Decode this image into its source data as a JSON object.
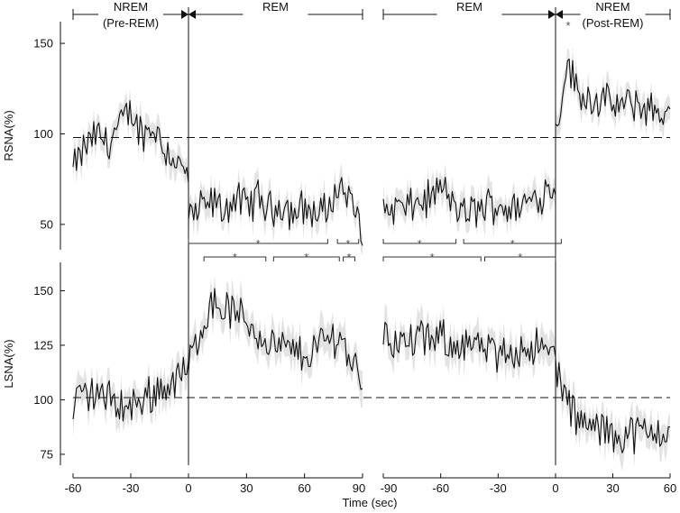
{
  "chart_data": {
    "type": "line",
    "x_label": "Time (sec)",
    "x_tick_labels": [
      "-60",
      "-30",
      "0",
      "30",
      "60",
      "90",
      "-90",
      "-60",
      "-30",
      "0",
      "30",
      "60"
    ],
    "phases": [
      {
        "label": "NREM",
        "sub": "(Pre-REM)"
      },
      {
        "label": "REM",
        "sub": ""
      },
      {
        "label": "REM",
        "sub": ""
      },
      {
        "label": "NREM",
        "sub": "(Post-REM)"
      }
    ],
    "significance_marker": "*",
    "panels": [
      {
        "id": "rsna",
        "ylabel": "RSNA(%)",
        "ylim": [
          36,
          162
        ],
        "yticks": [
          50,
          100,
          150
        ],
        "baseline": 98,
        "segments": {
          "pre_nrem": {
            "x": [
              -60,
              -54,
              -48,
              -42,
              -36,
              -30,
              -24,
              -18,
              -12,
              -6,
              0
            ],
            "y": [
              80,
              92,
              100,
              95,
              104,
              112,
              100,
              104,
              92,
              84,
              76
            ]
          },
          "rem_onset": {
            "x": [
              0,
              6,
              12,
              18,
              24,
              30,
              36,
              42,
              48,
              54,
              60,
              66,
              72,
              78,
              84,
              90
            ],
            "y": [
              52,
              58,
              62,
              58,
              64,
              60,
              65,
              58,
              62,
              56,
              60,
              55,
              58,
              72,
              62,
              48
            ]
          },
          "rem_offset": {
            "x": [
              -90,
              -84,
              -78,
              -72,
              -66,
              -60,
              -54,
              -48,
              -42,
              -36,
              -30,
              -24,
              -18,
              -12,
              -6,
              0
            ],
            "y": [
              55,
              60,
              58,
              62,
              64,
              70,
              62,
              55,
              58,
              60,
              62,
              58,
              60,
              64,
              68,
              72
            ]
          },
          "post_nrem": {
            "x": [
              0,
              6,
              12,
              18,
              24,
              30,
              36,
              42,
              48,
              54,
              60
            ],
            "y": [
              100,
              140,
              122,
              120,
              118,
              116,
              115,
              117,
              114,
              112,
              110
            ]
          }
        },
        "significance_brackets": [
          {
            "side": "onset",
            "from": 0,
            "to": 72
          },
          {
            "side": "onset",
            "from": 77,
            "to": 88
          },
          {
            "side": "offset",
            "from": -90,
            "to": -52
          },
          {
            "side": "offset",
            "from": -48,
            "to": 3
          }
        ]
      },
      {
        "id": "lsna",
        "ylabel": "LSNA(%)",
        "ylim": [
          70,
          163
        ],
        "yticks": [
          75,
          100,
          125,
          150
        ],
        "baseline": 101,
        "segments": {
          "pre_nrem": {
            "x": [
              -60,
              -54,
              -48,
              -42,
              -36,
              -30,
              -24,
              -18,
              -12,
              -6,
              0
            ],
            "y": [
              98,
              102,
              104,
              100,
              98,
              96,
              100,
              104,
              106,
              110,
              114
            ]
          },
          "rem_onset": {
            "x": [
              0,
              6,
              12,
              18,
              24,
              30,
              36,
              42,
              48,
              54,
              60,
              66,
              72,
              78,
              84,
              90
            ],
            "y": [
              115,
              132,
              145,
              142,
              140,
              136,
              130,
              126,
              124,
              122,
              120,
              124,
              128,
              130,
              118,
              110
            ]
          },
          "rem_offset": {
            "x": [
              -90,
              -84,
              -78,
              -72,
              -66,
              -60,
              -54,
              -48,
              -42,
              -36,
              -30,
              -24,
              -18,
              -12,
              -6,
              0
            ],
            "y": [
              130,
              128,
              124,
              130,
              126,
              128,
              125,
              127,
              124,
              122,
              120,
              122,
              124,
              125,
              122,
              120
            ]
          },
          "post_nrem": {
            "x": [
              0,
              6,
              12,
              18,
              24,
              30,
              36,
              42,
              48,
              54,
              60
            ],
            "y": [
              118,
              98,
              90,
              88,
              86,
              85,
              84,
              85,
              84,
              86,
              86
            ]
          }
        },
        "significance_brackets": [
          {
            "side": "onset",
            "from": 8,
            "to": 40
          },
          {
            "side": "onset",
            "from": 44,
            "to": 78
          },
          {
            "side": "onset",
            "from": 80,
            "to": 86
          },
          {
            "side": "offset",
            "from": -90,
            "to": -39
          },
          {
            "side": "offset",
            "from": -37,
            "to": 0
          }
        ]
      }
    ]
  }
}
